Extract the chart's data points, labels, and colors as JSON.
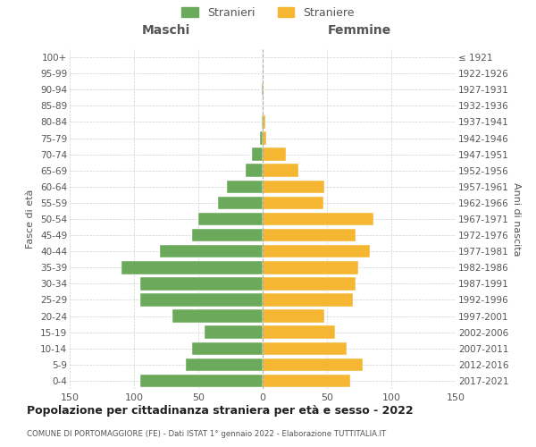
{
  "age_groups": [
    "0-4",
    "5-9",
    "10-14",
    "15-19",
    "20-24",
    "25-29",
    "30-34",
    "35-39",
    "40-44",
    "45-49",
    "50-54",
    "55-59",
    "60-64",
    "65-69",
    "70-74",
    "75-79",
    "80-84",
    "85-89",
    "90-94",
    "95-99",
    "100+"
  ],
  "birth_years": [
    "2017-2021",
    "2012-2016",
    "2007-2011",
    "2002-2006",
    "1997-2001",
    "1992-1996",
    "1987-1991",
    "1982-1986",
    "1977-1981",
    "1972-1976",
    "1967-1971",
    "1962-1966",
    "1957-1961",
    "1952-1956",
    "1947-1951",
    "1942-1946",
    "1937-1941",
    "1932-1936",
    "1927-1931",
    "1922-1926",
    "≤ 1921"
  ],
  "maschi": [
    95,
    60,
    55,
    45,
    70,
    95,
    95,
    110,
    80,
    55,
    50,
    35,
    28,
    13,
    8,
    2,
    1,
    0,
    1,
    0,
    0
  ],
  "femmine": [
    68,
    78,
    65,
    56,
    48,
    70,
    72,
    74,
    83,
    72,
    86,
    47,
    48,
    28,
    18,
    3,
    2,
    0,
    1,
    0,
    0
  ],
  "male_color": "#6aaa5a",
  "female_color": "#f5b731",
  "title": "Popolazione per cittadinanza straniera per età e sesso - 2022",
  "subtitle": "COMUNE DI PORTOMAGGIORE (FE) - Dati ISTAT 1° gennaio 2022 - Elaborazione TUTTITALIA.IT",
  "ylabel_left": "Fasce di età",
  "ylabel_right": "Anni di nascita",
  "xlabel_left": "Maschi",
  "xlabel_right": "Femmine",
  "legend_maschi": "Stranieri",
  "legend_femmine": "Straniere",
  "xlim": 150,
  "bg_color": "#ffffff",
  "grid_color": "#cccccc",
  "text_color": "#555555"
}
